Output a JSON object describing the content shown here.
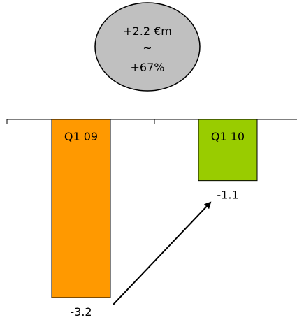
{
  "chart_data": {
    "type": "bar",
    "categories": [
      "Q1 09",
      "Q1 10"
    ],
    "values": [
      -3.2,
      -1.1
    ],
    "value_labels": [
      "-3.2",
      "-1.1"
    ],
    "bar_colors": [
      "#FF9900",
      "#99CC00"
    ],
    "ylim": [
      -3.2,
      0
    ],
    "axis_position": "top",
    "grid": false,
    "change_bubble": {
      "lines": [
        "+2.2 €m",
        "~",
        "+67%"
      ],
      "fill": "#C0C0C0"
    }
  }
}
